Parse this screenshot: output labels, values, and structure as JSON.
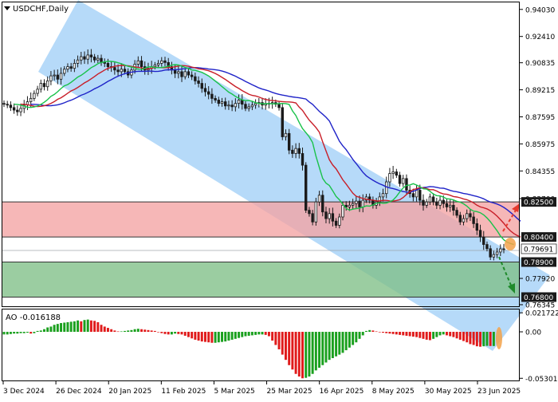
{
  "window": {
    "title": "USDCHF,Daily",
    "indicator_label": "AO -0.016188"
  },
  "colors": {
    "channel": "#a9d4f8",
    "resistance_zone": "#f4a3a3",
    "support_zone": "#7fbf86",
    "alligator_jaw": "#1f23c8",
    "alligator_teeth": "#c81e28",
    "alligator_lips": "#19c24a",
    "ao_up": "#1aa01e",
    "ao_down": "#e01b1b",
    "up_arrow": "#e53a2e",
    "down_arrow": "#1f8a2b",
    "price_label_bg": "#1a1a1a",
    "last_price_bg": "#ffffff"
  },
  "chart_data": [
    {
      "type": "candlestick",
      "symbol": "USDCHF",
      "timeframe": "Daily",
      "title": "USDCHF,Daily",
      "y_ticks": [
        "0.94030",
        "0.92410",
        "0.90835",
        "0.89215",
        "0.87595",
        "0.85975",
        "0.84355",
        "0.82700"
      ],
      "y_tick_values": [
        0.9403,
        0.9241,
        0.90835,
        0.89215,
        0.87595,
        0.85975,
        0.84355,
        0.827
      ],
      "x_ticks": [
        "3 Dec 2024",
        "26 Dec 2024",
        "20 Jan 2025",
        "11 Feb 2025",
        "5 Mar 2025",
        "25 Mar 2025",
        "16 Apr 2025",
        "8 May 2025",
        "30 May 2025",
        "23 Jun 2025"
      ],
      "price_labels": [
        {
          "text": "0.82500",
          "value": 0.825,
          "style": "dark"
        },
        {
          "text": "0.80400",
          "value": 0.804,
          "style": "dark"
        },
        {
          "text": "0.79691",
          "value": 0.79691,
          "style": "light"
        },
        {
          "text": "0.78900",
          "value": 0.789,
          "style": "dark"
        },
        {
          "text": "0.77920",
          "value": 0.7792,
          "style": "plain"
        },
        {
          "text": "0.76800",
          "value": 0.768,
          "style": "dark"
        },
        {
          "text": "0.76345",
          "value": 0.76345,
          "style": "plain"
        }
      ],
      "zones": [
        {
          "name": "resistance",
          "from": 0.804,
          "to": 0.825
        },
        {
          "name": "support",
          "from": 0.768,
          "to": 0.789
        }
      ],
      "ylim": [
        0.7625,
        0.9445
      ],
      "n_bars": 150,
      "close": [
        0.8835,
        0.883,
        0.8815,
        0.88,
        0.879,
        0.881,
        0.883,
        0.885,
        0.887,
        0.89,
        0.8925,
        0.896,
        0.894,
        0.8975,
        0.9005,
        0.901,
        0.8985,
        0.902,
        0.9045,
        0.906,
        0.905,
        0.908,
        0.91,
        0.912,
        0.9105,
        0.913,
        0.9118,
        0.91,
        0.911,
        0.9085,
        0.908,
        0.906,
        0.9055,
        0.904,
        0.903,
        0.9045,
        0.903,
        0.901,
        0.904,
        0.9075,
        0.9095,
        0.906,
        0.904,
        0.905,
        0.906,
        0.907,
        0.908,
        0.9095,
        0.9085,
        0.906,
        0.904,
        0.902,
        0.903,
        0.9,
        0.903,
        0.901,
        0.9,
        0.8975,
        0.896,
        0.893,
        0.891,
        0.8895,
        0.887,
        0.886,
        0.884,
        0.885,
        0.8825,
        0.883,
        0.882,
        0.884,
        0.886,
        0.8835,
        0.881,
        0.882,
        0.883,
        0.884,
        0.8845,
        0.883,
        0.884,
        0.884,
        0.8845,
        0.8835,
        0.8815,
        0.864,
        0.866,
        0.856,
        0.854,
        0.857,
        0.854,
        0.847,
        0.82,
        0.818,
        0.813,
        0.825,
        0.829,
        0.819,
        0.815,
        0.818,
        0.8135,
        0.811,
        0.816,
        0.823,
        0.822,
        0.823,
        0.824,
        0.8255,
        0.822,
        0.826,
        0.828,
        0.826,
        0.823,
        0.825,
        0.828,
        0.83,
        0.837,
        0.842,
        0.843,
        0.841,
        0.836,
        0.839,
        0.832,
        0.83,
        0.828,
        0.832,
        0.826,
        0.823,
        0.825,
        0.828,
        0.825,
        0.823,
        0.826,
        0.824,
        0.822,
        0.823,
        0.82,
        0.817,
        0.813,
        0.815,
        0.818,
        0.816,
        0.812,
        0.808,
        0.804,
        0.7995,
        0.797,
        0.792,
        0.7935,
        0.795,
        0.7969,
        0.7969
      ]
    },
    {
      "type": "bar",
      "name": "Awesome Oscillator",
      "label": "AO -0.016188",
      "y_ticks": [
        "0.021722",
        "0.00",
        "-0.053013"
      ],
      "y_tick_values": [
        0.021722,
        0.0,
        -0.053013
      ],
      "ylim": [
        -0.0555,
        0.0255
      ],
      "values": [
        -0.003,
        -0.003,
        -0.0025,
        -0.002,
        -0.002,
        -0.0015,
        -0.0015,
        -0.001,
        -0.002,
        -0.0015,
        0.001,
        0.0015,
        0.003,
        0.005,
        0.006,
        0.008,
        0.009,
        0.01,
        0.0105,
        0.011,
        0.0115,
        0.012,
        0.013,
        0.012,
        0.0135,
        0.014,
        0.013,
        0.0125,
        0.011,
        0.008,
        0.006,
        0.0045,
        0.003,
        0.0015,
        0.0005,
        0.0005,
        0.001,
        0.0015,
        0.002,
        0.003,
        0.0035,
        0.003,
        0.0025,
        0.002,
        0.0015,
        0.001,
        -0.0005,
        -0.0015,
        -0.0025,
        -0.003,
        -0.003,
        -0.002,
        -0.0025,
        -0.003,
        -0.0045,
        -0.006,
        -0.0075,
        -0.009,
        -0.01,
        -0.011,
        -0.0115,
        -0.012,
        -0.0125,
        -0.0125,
        -0.012,
        -0.0115,
        -0.011,
        -0.01,
        -0.009,
        -0.008,
        -0.007,
        -0.006,
        -0.005,
        -0.0045,
        -0.004,
        -0.0035,
        -0.003,
        -0.003,
        -0.0035,
        -0.005,
        -0.01,
        -0.015,
        -0.02,
        -0.026,
        -0.032,
        -0.038,
        -0.043,
        -0.048,
        -0.051,
        -0.053,
        -0.0525,
        -0.051,
        -0.048,
        -0.044,
        -0.041,
        -0.038,
        -0.035,
        -0.032,
        -0.03,
        -0.028,
        -0.026,
        -0.024,
        -0.021,
        -0.018,
        -0.015,
        -0.012,
        -0.008,
        -0.004,
        0.001,
        0.002,
        0.0015,
        0.0005,
        -0.0005,
        -0.001,
        -0.0015,
        -0.002,
        -0.0025,
        -0.003,
        -0.0035,
        -0.004,
        -0.0045,
        -0.005,
        -0.0055,
        -0.006,
        -0.007,
        -0.008,
        -0.009,
        -0.0095,
        -0.008,
        -0.006,
        -0.004,
        -0.003,
        -0.004,
        -0.005,
        -0.006,
        -0.0075,
        -0.009,
        -0.0105,
        -0.012,
        -0.014,
        -0.015,
        -0.0165,
        -0.017,
        -0.0165,
        -0.016,
        -0.0162,
        -0.0162
      ]
    }
  ]
}
